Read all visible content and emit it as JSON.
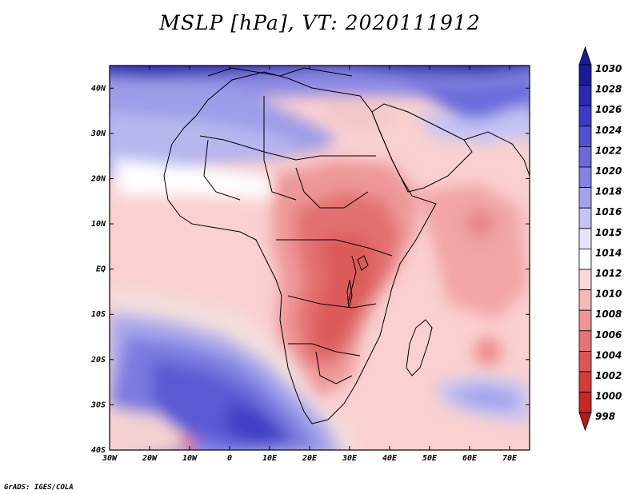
{
  "title": "MSLP [hPa], VT: 2020111912",
  "credit": "GrADS: IGES/COLA",
  "lat_labels": [
    "40N",
    "30N",
    "20N",
    "10N",
    "EQ",
    "10S",
    "20S",
    "30S",
    "40S"
  ],
  "lon_labels": [
    "30W",
    "20W",
    "10W",
    "0",
    "10E",
    "20E",
    "30E",
    "40E",
    "50E",
    "60E",
    "70E"
  ],
  "colorbar": {
    "levels": [
      "1030",
      "1028",
      "1026",
      "1024",
      "1022",
      "1020",
      "1018",
      "1016",
      "1015",
      "1014",
      "1012",
      "1010",
      "1008",
      "1006",
      "1004",
      "1002",
      "1000",
      "998"
    ],
    "colors": [
      "#1b1b98",
      "#2a2ab0",
      "#3b3bc4",
      "#5151d2",
      "#6a6adc",
      "#8383e4",
      "#a3a3ec",
      "#c3c3f4",
      "#e4e4fa",
      "#ffffff",
      "#fbd7d7",
      "#f6b7b7",
      "#ef9595",
      "#e67474",
      "#dd5656",
      "#d43c3c",
      "#c82727",
      "#b51a1a"
    ]
  }
}
